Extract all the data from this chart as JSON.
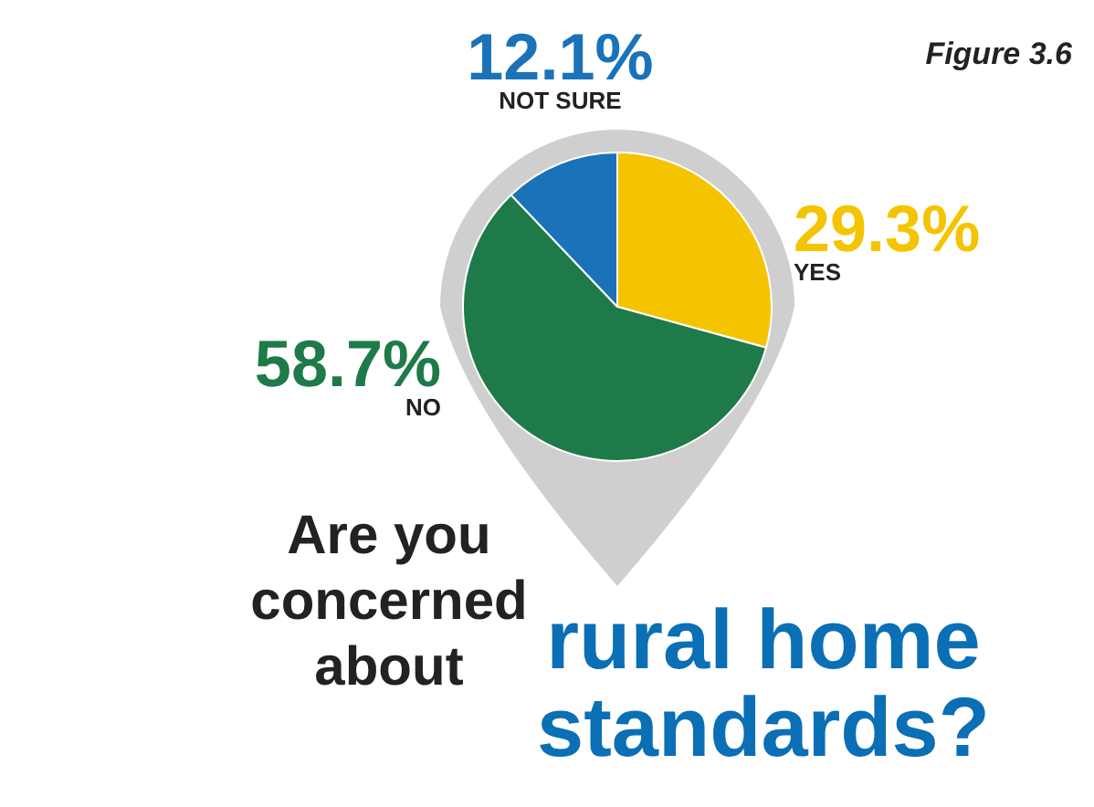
{
  "chart_data": {
    "type": "pie",
    "title": "Are you concerned about",
    "subtitle": "rural home standards?",
    "annotations": [
      "Figure 3.6"
    ],
    "categories": [
      "YES",
      "NO",
      "NOT SURE"
    ],
    "values": [
      29.3,
      58.7,
      12.1
    ],
    "colors": [
      "#f5c400",
      "#1e7a48",
      "#1a72b8"
    ],
    "value_labels": [
      "29.3%",
      "58.7%",
      "12.1%"
    ],
    "legend": false
  }
}
